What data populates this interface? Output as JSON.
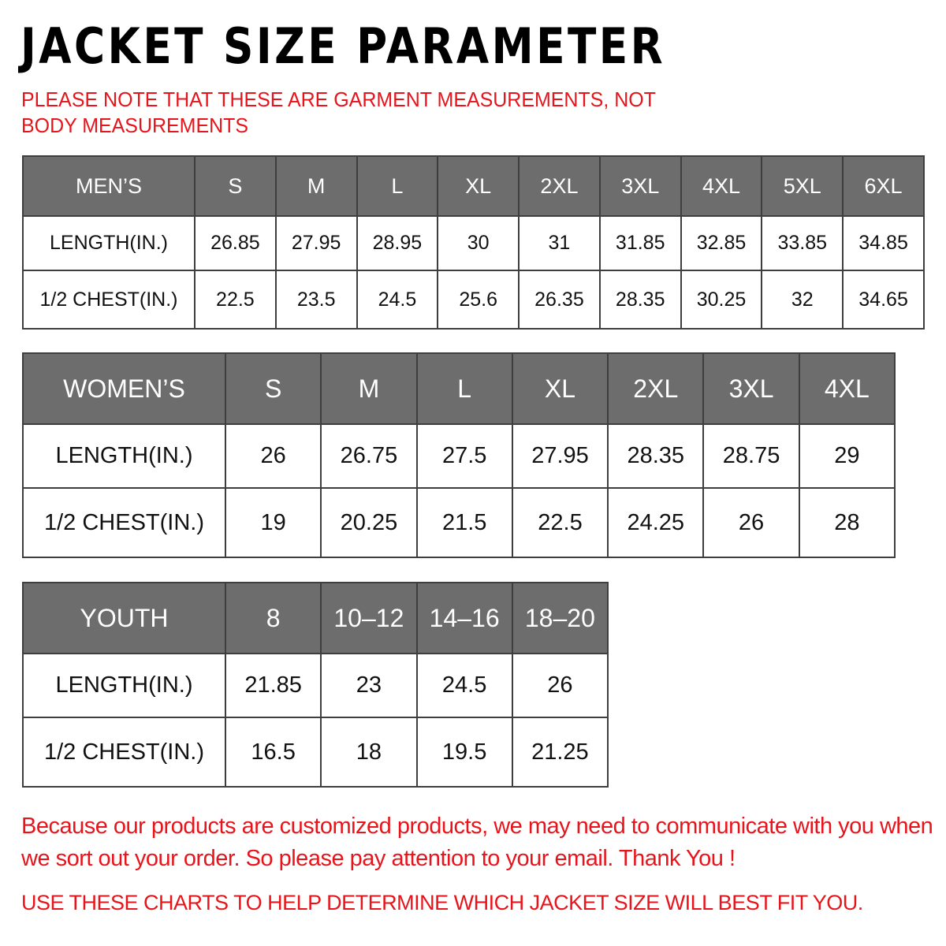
{
  "title": "JACKET  SIZE PARAMETER",
  "note": "PLEASE NOTE THAT THESE ARE GARMENT MEASUREMENTS, NOT BODY MEASUREMENTS",
  "colors": {
    "header_bg": "#6d6d6d",
    "accent_red": "#e8141b"
  },
  "tables": {
    "men": {
      "header": [
        "MEN’S",
        "S",
        "M",
        "L",
        "XL",
        "2XL",
        "3XL",
        "4XL",
        "5XL",
        "6XL"
      ],
      "rows": [
        [
          "LENGTH(IN.)",
          "26.85",
          "27.95",
          "28.95",
          "30",
          "31",
          "31.85",
          "32.85",
          "33.85",
          "34.85"
        ],
        [
          "1/2 CHEST(IN.)",
          "22.5",
          "23.5",
          "24.5",
          "25.6",
          "26.35",
          "28.35",
          "30.25",
          "32",
          "34.65"
        ]
      ]
    },
    "women": {
      "header": [
        "WOMEN’S",
        "S",
        "M",
        "L",
        "XL",
        "2XL",
        "3XL",
        "4XL"
      ],
      "rows": [
        [
          "LENGTH(IN.)",
          "26",
          "26.75",
          "27.5",
          "27.95",
          "28.35",
          "28.75",
          "29"
        ],
        [
          "1/2 CHEST(IN.)",
          "19",
          "20.25",
          "21.5",
          "22.5",
          "24.25",
          "26",
          "28"
        ]
      ]
    },
    "youth": {
      "header": [
        "YOUTH",
        "8",
        "10–12",
        "14–16",
        "18–20"
      ],
      "rows": [
        [
          "LENGTH(IN.)",
          "21.85",
          "23",
          "24.5",
          "26"
        ],
        [
          "1/2 CHEST(IN.)",
          "16.5",
          "18",
          "19.5",
          "21.25"
        ]
      ]
    }
  },
  "footer": "Because our products are customized products, we may need to communicate with you when we sort out your order. So please pay attention to your email. Thank You !",
  "footer2": "USE THESE CHARTS TO HELP DETERMINE WHICH JACKET SIZE WILL BEST FIT YOU."
}
